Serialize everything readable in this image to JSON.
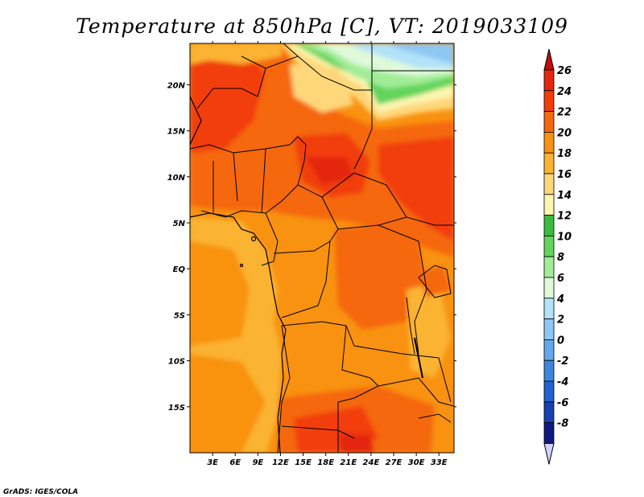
{
  "title": "Temperature at 850hPa [C], VT: 2019033109",
  "credit": "GrADS: IGES/COLA",
  "map": {
    "lon_range": [
      0,
      35
    ],
    "lat_range": [
      -20,
      24.5
    ],
    "lon_ticks": [
      {
        "value": 3,
        "label": "3E"
      },
      {
        "value": 6,
        "label": "6E"
      },
      {
        "value": 9,
        "label": "9E"
      },
      {
        "value": 12,
        "label": "12E"
      },
      {
        "value": 15,
        "label": "15E"
      },
      {
        "value": 18,
        "label": "18E"
      },
      {
        "value": 21,
        "label": "21E"
      },
      {
        "value": 24,
        "label": "24E"
      },
      {
        "value": 27,
        "label": "27E"
      },
      {
        "value": 30,
        "label": "30E"
      },
      {
        "value": 33,
        "label": "33E"
      }
    ],
    "lat_ticks": [
      {
        "value": 20,
        "label": "20N"
      },
      {
        "value": 15,
        "label": "15N"
      },
      {
        "value": 10,
        "label": "10N"
      },
      {
        "value": 5,
        "label": "5N"
      },
      {
        "value": 0,
        "label": "EQ"
      },
      {
        "value": -5,
        "label": "5S"
      },
      {
        "value": -10,
        "label": "10S"
      },
      {
        "value": -15,
        "label": "15S"
      }
    ]
  },
  "colorbar": {
    "bins": [
      {
        "label": "26",
        "color": "#e3260d"
      },
      {
        "label": "24",
        "color": "#f23d08"
      },
      {
        "label": "22",
        "color": "#f56810"
      },
      {
        "label": "20",
        "color": "#f99210"
      },
      {
        "label": "18",
        "color": "#fbb332"
      },
      {
        "label": "16",
        "color": "#fed77a"
      },
      {
        "label": "14",
        "color": "#fcf6b0"
      },
      {
        "label": "12",
        "color": "#3cbc3d"
      },
      {
        "label": "10",
        "color": "#62d45b"
      },
      {
        "label": "8",
        "color": "#a2ec97"
      },
      {
        "label": "6",
        "color": "#dff9d9"
      },
      {
        "label": "4",
        "color": "#b3e2f9"
      },
      {
        "label": "2",
        "color": "#8dc8f3"
      },
      {
        "label": "0",
        "color": "#63a8ea"
      },
      {
        "label": "-2",
        "color": "#3c86de"
      },
      {
        "label": "-4",
        "color": "#1f62d2"
      },
      {
        "label": "-6",
        "color": "#1740b0"
      },
      {
        "label": "-8",
        "color": "#0d1880"
      }
    ],
    "top_arrow_color": "#c00e0b",
    "bottom_arrow_color": "#d2d1fb"
  }
}
